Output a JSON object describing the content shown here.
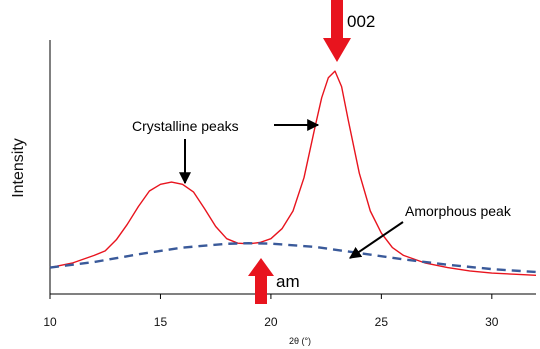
{
  "chart_data": {
    "type": "line",
    "title": "",
    "xlabel": "2θ (°)",
    "ylabel": "Intensity",
    "xlim": [
      10,
      32
    ],
    "ylim": [
      0,
      100
    ],
    "x_ticks": [
      "10",
      "15",
      "20",
      "25",
      "30"
    ],
    "grid": false,
    "legend": "none",
    "series": [
      {
        "color": "#e8141e",
        "style": "solid",
        "x": [
          10,
          11,
          12,
          12.5,
          13,
          13.5,
          14,
          14.5,
          15,
          15.5,
          16,
          16.5,
          17,
          17.5,
          18,
          18.5,
          19,
          19.5,
          20,
          20.5,
          21,
          21.5,
          22,
          22.3,
          22.6,
          22.9,
          23.2,
          23.5,
          24,
          24.5,
          25,
          25.5,
          26,
          27,
          28,
          29,
          30,
          31,
          32
        ],
        "y": [
          6.5,
          8.5,
          12,
          14,
          19,
          26,
          34,
          41,
          44,
          45,
          44,
          40.5,
          33,
          25,
          19.5,
          17.5,
          17.2,
          17.8,
          19.5,
          24,
          32,
          47,
          70,
          83,
          92,
          95,
          88,
          73,
          49,
          32,
          22,
          15.5,
          12,
          8.5,
          6.5,
          5,
          4,
          3.5,
          3
        ]
      },
      {
        "color": "#3a5a9a",
        "style": "dashed",
        "x": [
          10,
          12,
          14,
          16,
          18,
          19,
          20,
          22,
          24,
          26,
          28,
          30,
          32
        ],
        "y": [
          6.5,
          9,
          12.5,
          15.5,
          17.2,
          17.5,
          17.3,
          15.8,
          13,
          10.2,
          7.8,
          5.8,
          4.5
        ]
      }
    ],
    "annotations": [
      {
        "text": "002",
        "x": 22.9,
        "y": 95,
        "arrow_color": "#e8141e"
      },
      {
        "text": "Crystalline peaks",
        "x": 16,
        "y": 45,
        "arrow_color": "#000000"
      },
      {
        "text": "Amorphous peak",
        "x": 22.5,
        "y": 16.5,
        "arrow_color": "#000000"
      },
      {
        "text": "am",
        "x": 19.2,
        "y": 17.4,
        "arrow_color": "#e8141e"
      }
    ]
  }
}
